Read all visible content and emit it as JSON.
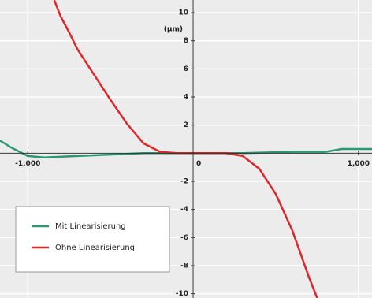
{
  "chart_data": {
    "type": "line",
    "y_label": "(µm)",
    "xlim": [
      -1168,
      1082
    ],
    "ylim": [
      -10.3,
      10.9
    ],
    "xticks": [
      {
        "value": -1000,
        "label": "-1,000"
      },
      0,
      {
        "value": 1000,
        "label": "1,000"
      }
    ],
    "yticks": [
      -10,
      -8,
      -6,
      -4,
      -2,
      0,
      2,
      4,
      6,
      8,
      10
    ],
    "grid": true,
    "legend": "lower-left",
    "series": [
      {
        "name": "Mit Linearisierung",
        "color": "#2a9a72",
        "x": [
          -1168,
          -1100,
          -1000,
          -900,
          -700,
          -500,
          -300,
          0,
          300,
          600,
          800,
          900,
          1082
        ],
        "values": [
          0.9,
          0.4,
          -0.2,
          -0.3,
          -0.2,
          -0.1,
          0,
          0,
          0,
          0.1,
          0.1,
          0.3,
          0.3
        ]
      },
      {
        "name": "Ohne Linearisierung",
        "color": "#e0262a",
        "x": [
          -840,
          -800,
          -750,
          -700,
          -600,
          -500,
          -400,
          -300,
          -200,
          -100,
          0,
          100,
          200,
          300,
          400,
          500,
          600,
          700,
          750
        ],
        "values": [
          10.9,
          9.7,
          8.6,
          7.4,
          5.6,
          3.8,
          2.1,
          0.7,
          0.1,
          0,
          0,
          0,
          0,
          -0.2,
          -1.1,
          -2.9,
          -5.5,
          -8.8,
          -10.3
        ]
      }
    ]
  }
}
